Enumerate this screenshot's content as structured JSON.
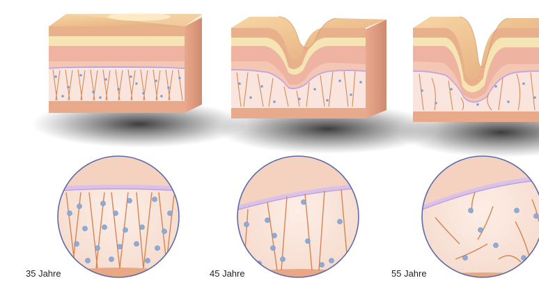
{
  "panels": [
    {
      "age_label": "35 Jahre",
      "stage": "young-skin",
      "wrinkle_depth": 0.0,
      "collagen_density": "high"
    },
    {
      "age_label": "45 Jahre",
      "stage": "moderate-wrinkle",
      "wrinkle_depth": 0.45,
      "collagen_density": "medium"
    },
    {
      "age_label": "55 Jahre",
      "stage": "deep-wrinkle",
      "wrinkle_depth": 0.85,
      "collagen_density": "low"
    }
  ],
  "colors": {
    "epidermis": "#e7b68a",
    "epidermis_top": "#f3d9b1",
    "skin_band_pink": "#ebb2a3",
    "skin_band_cream": "#f6e7b6",
    "dermis_fill": "#f8e3dc",
    "membrane": "#c9a8dc",
    "fiber": "#d58a55",
    "cell": "#8eaad6",
    "shadow": "#2b2b2b",
    "circle_outline": "#5b6aa8"
  },
  "icons": [
    "skin-block-icon",
    "magnified-dermis-icon"
  ]
}
